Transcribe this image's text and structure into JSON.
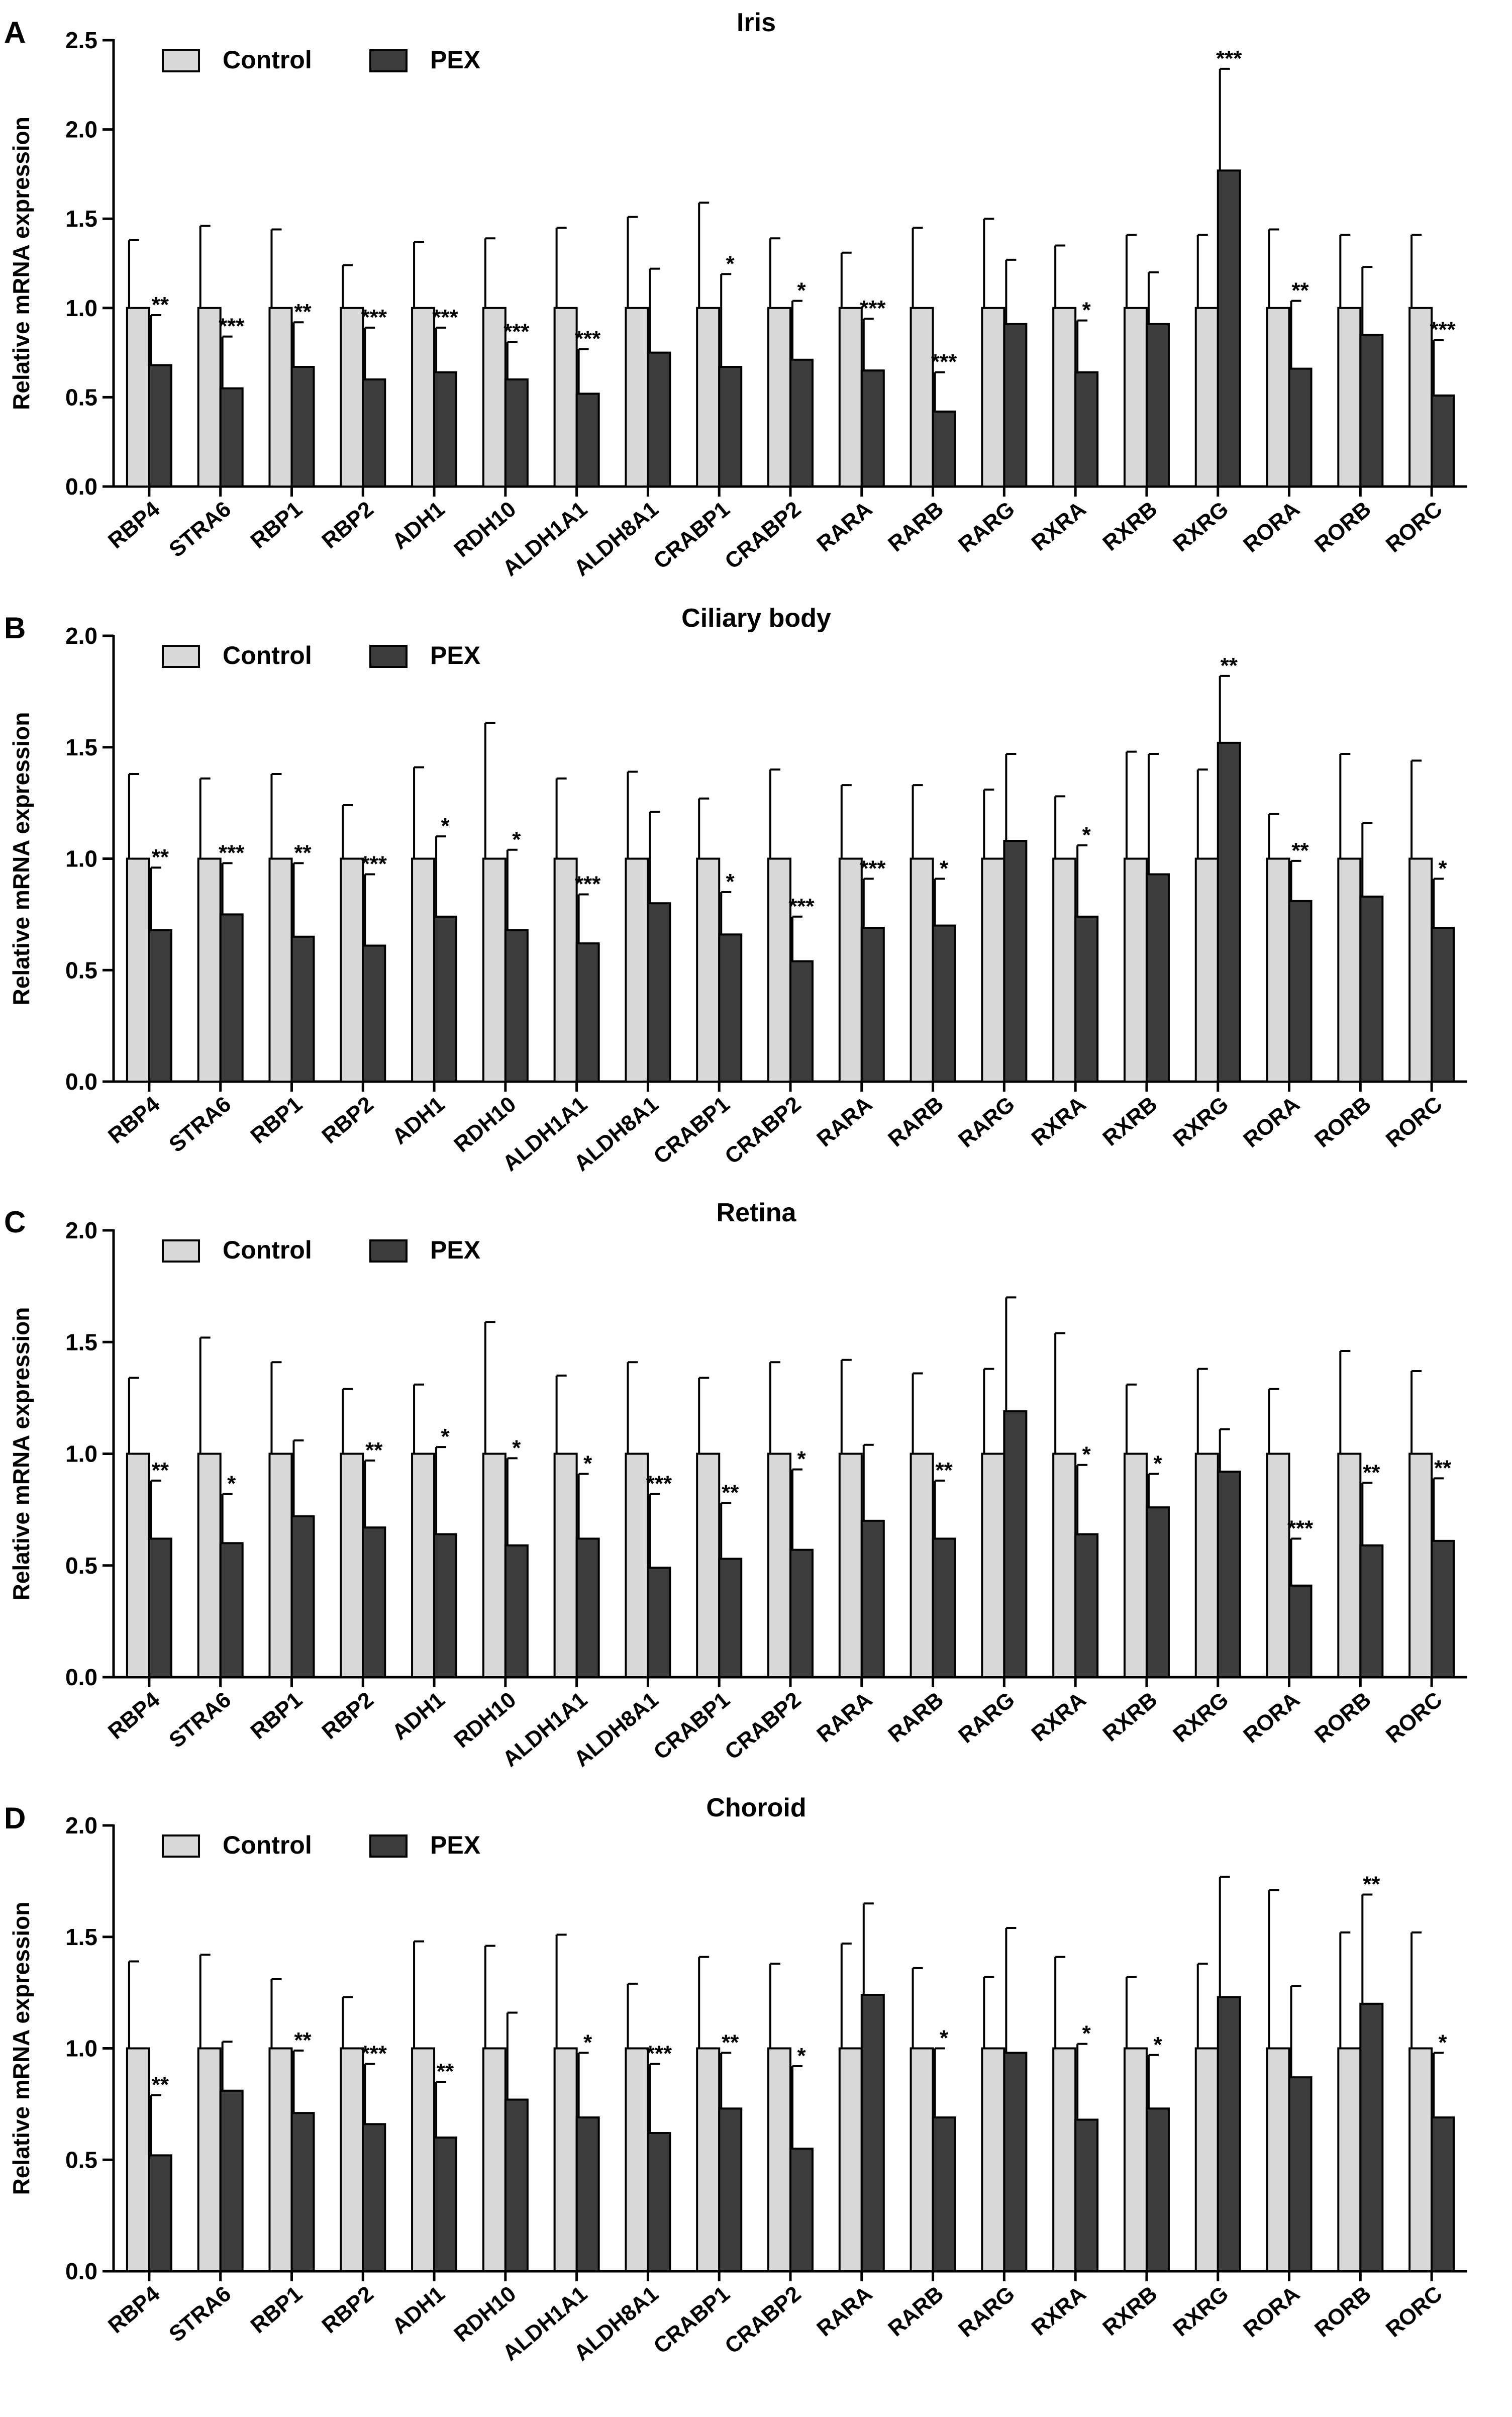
{
  "figure": {
    "ylabel": "Relative mRNA expression",
    "legend": {
      "control": "Control",
      "pex": "PEX"
    },
    "colors": {
      "control": "#d9d9d9",
      "pex": "#3c3c3c",
      "stroke": "#000000"
    }
  },
  "chart_data": [
    {
      "type": "bar",
      "panel": "A",
      "title": "Iris",
      "ylabel": "Relative mRNA expression",
      "ylim": [
        0,
        2.5
      ],
      "yticks": [
        "0.0",
        "0.5",
        "1.0",
        "1.5",
        "2.0",
        "2.5"
      ],
      "categories": [
        "RBP4",
        "STRA6",
        "RBP1",
        "RBP2",
        "ADH1",
        "RDH10",
        "ALDH1A1",
        "ALDH8A1",
        "CRABP1",
        "CRABP2",
        "RARA",
        "RARB",
        "RARG",
        "RXRA",
        "RXRB",
        "RXRG",
        "RORA",
        "RORB",
        "RORC"
      ],
      "series": [
        {
          "name": "Control",
          "values": [
            1,
            1,
            1,
            1,
            1,
            1,
            1,
            1,
            1,
            1,
            1,
            1,
            1,
            1,
            1,
            1,
            1,
            1,
            1
          ],
          "errors": [
            0.38,
            0.46,
            0.44,
            0.24,
            0.37,
            0.39,
            0.45,
            0.51,
            0.59,
            0.39,
            0.31,
            0.45,
            0.5,
            0.35,
            0.41,
            0.41,
            0.44,
            0.41,
            0.41
          ]
        },
        {
          "name": "PEX",
          "values": [
            0.68,
            0.55,
            0.67,
            0.6,
            0.64,
            0.6,
            0.52,
            0.75,
            0.67,
            0.71,
            0.65,
            0.42,
            0.91,
            0.64,
            0.91,
            1.77,
            0.66,
            0.85,
            0.51
          ],
          "errors": [
            0.28,
            0.29,
            0.25,
            0.29,
            0.25,
            0.21,
            0.25,
            0.47,
            0.52,
            0.33,
            0.29,
            0.22,
            0.36,
            0.29,
            0.29,
            0.57,
            0.38,
            0.38,
            0.31
          ]
        }
      ],
      "significance": [
        "**",
        "***",
        "**",
        "***",
        "***",
        "***",
        "***",
        "",
        "*",
        "*",
        "***",
        "***",
        "",
        "*",
        "",
        "***",
        "**",
        "",
        "***"
      ]
    },
    {
      "type": "bar",
      "panel": "B",
      "title": "Ciliary body",
      "ylabel": "Relative mRNA expression",
      "ylim": [
        0,
        2.0
      ],
      "yticks": [
        "0.0",
        "0.5",
        "1.0",
        "1.5",
        "2.0"
      ],
      "categories": [
        "RBP4",
        "STRA6",
        "RBP1",
        "RBP2",
        "ADH1",
        "RDH10",
        "ALDH1A1",
        "ALDH8A1",
        "CRABP1",
        "CRABP2",
        "RARA",
        "RARB",
        "RARG",
        "RXRA",
        "RXRB",
        "RXRG",
        "RORA",
        "RORB",
        "RORC"
      ],
      "series": [
        {
          "name": "Control",
          "values": [
            1,
            1,
            1,
            1,
            1,
            1,
            1,
            1,
            1,
            1,
            1,
            1,
            1,
            1,
            1,
            1,
            1,
            1,
            1
          ],
          "errors": [
            0.38,
            0.36,
            0.38,
            0.24,
            0.41,
            0.61,
            0.36,
            0.39,
            0.27,
            0.4,
            0.33,
            0.33,
            0.31,
            0.28,
            0.48,
            0.4,
            0.2,
            0.47,
            0.44
          ]
        },
        {
          "name": "PEX",
          "values": [
            0.68,
            0.75,
            0.65,
            0.61,
            0.74,
            0.68,
            0.62,
            0.8,
            0.66,
            0.54,
            0.69,
            0.7,
            1.08,
            0.74,
            0.93,
            1.52,
            0.81,
            0.83,
            0.69
          ],
          "errors": [
            0.28,
            0.23,
            0.33,
            0.32,
            0.36,
            0.36,
            0.22,
            0.41,
            0.19,
            0.2,
            0.22,
            0.21,
            0.39,
            0.32,
            0.54,
            0.3,
            0.18,
            0.33,
            0.22
          ]
        }
      ],
      "significance": [
        "**",
        "***",
        "**",
        "***",
        "*",
        "*",
        "***",
        "",
        "*",
        "***",
        "***",
        "*",
        "",
        "*",
        "",
        "**",
        "**",
        "",
        "*"
      ]
    },
    {
      "type": "bar",
      "panel": "C",
      "title": "Retina",
      "ylabel": "Relative mRNA expression",
      "ylim": [
        0,
        2.0
      ],
      "yticks": [
        "0.0",
        "0.5",
        "1.0",
        "1.5",
        "2.0"
      ],
      "categories": [
        "RBP4",
        "STRA6",
        "RBP1",
        "RBP2",
        "ADH1",
        "RDH10",
        "ALDH1A1",
        "ALDH8A1",
        "CRABP1",
        "CRABP2",
        "RARA",
        "RARB",
        "RARG",
        "RXRA",
        "RXRB",
        "RXRG",
        "RORA",
        "RORB",
        "RORC"
      ],
      "series": [
        {
          "name": "Control",
          "values": [
            1,
            1,
            1,
            1,
            1,
            1,
            1,
            1,
            1,
            1,
            1,
            1,
            1,
            1,
            1,
            1,
            1,
            1,
            1
          ],
          "errors": [
            0.34,
            0.52,
            0.41,
            0.29,
            0.31,
            0.59,
            0.35,
            0.41,
            0.34,
            0.41,
            0.42,
            0.36,
            0.38,
            0.54,
            0.31,
            0.38,
            0.29,
            0.46,
            0.37
          ]
        },
        {
          "name": "PEX",
          "values": [
            0.62,
            0.6,
            0.72,
            0.67,
            0.64,
            0.59,
            0.62,
            0.49,
            0.53,
            0.57,
            0.7,
            0.62,
            1.19,
            0.64,
            0.76,
            0.92,
            0.41,
            0.59,
            0.61
          ],
          "errors": [
            0.26,
            0.22,
            0.34,
            0.3,
            0.39,
            0.39,
            0.29,
            0.33,
            0.25,
            0.36,
            0.34,
            0.26,
            0.51,
            0.31,
            0.15,
            0.19,
            0.21,
            0.28,
            0.28
          ]
        }
      ],
      "significance": [
        "**",
        "*",
        "",
        "**",
        "*",
        "*",
        "*",
        "***",
        "**",
        "*",
        "",
        "**",
        "",
        "*",
        "*",
        "",
        "***",
        "**",
        "**"
      ]
    },
    {
      "type": "bar",
      "panel": "D",
      "title": "Choroid",
      "ylabel": "Relative mRNA expression",
      "ylim": [
        0,
        2.0
      ],
      "yticks": [
        "0.0",
        "0.5",
        "1.0",
        "1.5",
        "2.0"
      ],
      "categories": [
        "RBP4",
        "STRA6",
        "RBP1",
        "RBP2",
        "ADH1",
        "RDH10",
        "ALDH1A1",
        "ALDH8A1",
        "CRABP1",
        "CRABP2",
        "RARA",
        "RARB",
        "RARG",
        "RXRA",
        "RXRB",
        "RXRG",
        "RORA",
        "RORB",
        "RORC"
      ],
      "series": [
        {
          "name": "Control",
          "values": [
            1,
            1,
            1,
            1,
            1,
            1,
            1,
            1,
            1,
            1,
            1,
            1,
            1,
            1,
            1,
            1,
            1,
            1,
            1
          ],
          "errors": [
            0.39,
            0.42,
            0.31,
            0.23,
            0.48,
            0.46,
            0.51,
            0.29,
            0.41,
            0.38,
            0.47,
            0.36,
            0.32,
            0.41,
            0.32,
            0.38,
            0.71,
            0.52,
            0.52
          ]
        },
        {
          "name": "PEX",
          "values": [
            0.52,
            0.81,
            0.71,
            0.66,
            0.6,
            0.77,
            0.69,
            0.62,
            0.73,
            0.55,
            1.24,
            0.69,
            0.98,
            0.68,
            0.73,
            1.23,
            0.87,
            1.2,
            0.69
          ],
          "errors": [
            0.27,
            0.22,
            0.28,
            0.27,
            0.25,
            0.39,
            0.29,
            0.31,
            0.25,
            0.37,
            0.41,
            0.31,
            0.56,
            0.34,
            0.24,
            0.54,
            0.41,
            0.49,
            0.29
          ]
        }
      ],
      "significance": [
        "**",
        "",
        "**",
        "***",
        "**",
        "",
        "*",
        "***",
        "**",
        "*",
        "",
        "*",
        "",
        "*",
        "*",
        "",
        "",
        "**",
        "*"
      ]
    }
  ]
}
